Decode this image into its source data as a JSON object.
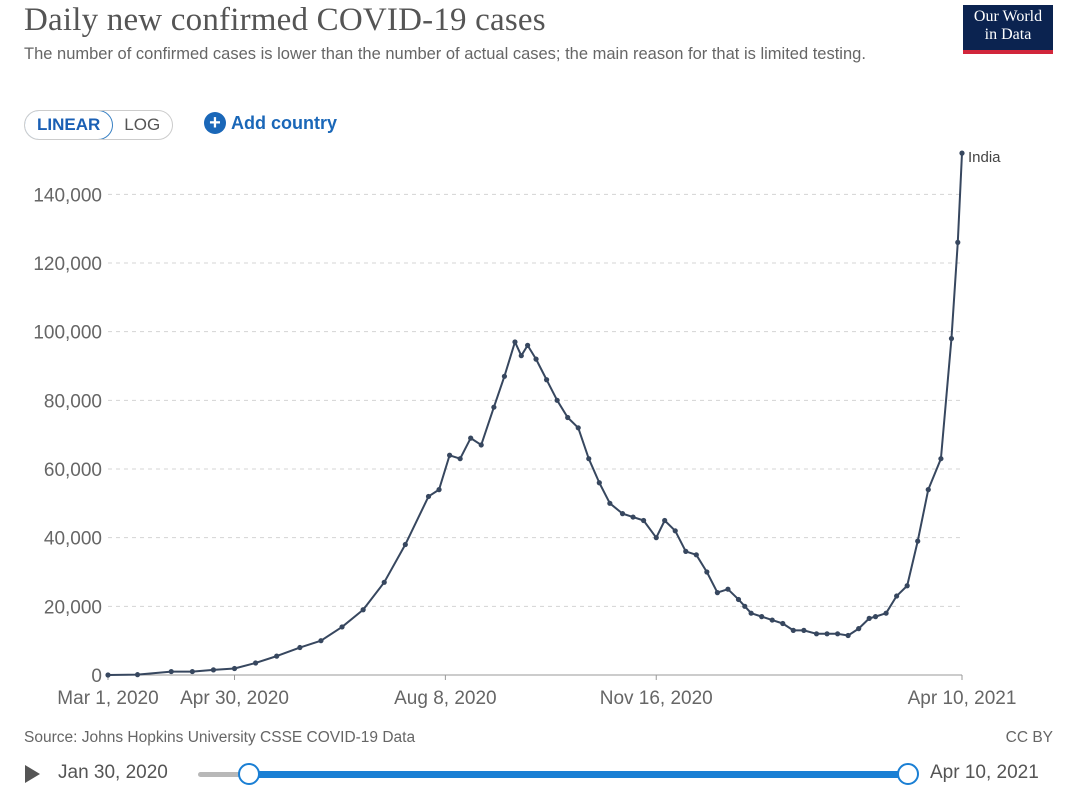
{
  "header": {
    "title": "Daily new confirmed COVID-19 cases",
    "subtitle": "The number of confirmed cases is lower than the number of actual cases; the main reason for that is limited testing.",
    "logo_line1": "Our World",
    "logo_line2": "in Data"
  },
  "controls": {
    "linear_label": "LINEAR",
    "log_label": "LOG",
    "add_country_label": "Add country",
    "selected_scale": "LINEAR"
  },
  "footer": {
    "source": "Source: Johns Hopkins University CSSE COVID-19 Data",
    "license": "CC BY"
  },
  "timeline": {
    "start_date": "Jan 30, 2020",
    "end_date": "Apr 10, 2021"
  },
  "colors": {
    "line": "#37475f",
    "accent": "#1a7fd4",
    "brand": "#0b2350"
  },
  "chart_data": {
    "type": "line",
    "title": "Daily new confirmed COVID-19 cases",
    "xlabel": "",
    "ylabel": "",
    "ylim": [
      0,
      150000
    ],
    "yticks": [
      0,
      20000,
      40000,
      60000,
      80000,
      100000,
      120000,
      140000
    ],
    "ytick_labels": [
      "0",
      "20,000",
      "40,000",
      "60,000",
      "80,000",
      "100,000",
      "120,000",
      "140,000"
    ],
    "xlim": [
      "2020-03-01",
      "2021-04-10"
    ],
    "xticks": [
      "2020-03-01",
      "2020-04-30",
      "2020-08-08",
      "2020-11-16",
      "2021-04-10"
    ],
    "xtick_labels": [
      "Mar 1, 2020",
      "Apr 30, 2020",
      "Aug 8, 2020",
      "Nov 16, 2020",
      "Apr 10, 2021"
    ],
    "grid": "horizontal-dashed",
    "series": [
      {
        "name": "India",
        "x": [
          "2020-03-01",
          "2020-03-15",
          "2020-03-31",
          "2020-04-10",
          "2020-04-20",
          "2020-04-30",
          "2020-05-10",
          "2020-05-20",
          "2020-05-31",
          "2020-06-10",
          "2020-06-20",
          "2020-06-30",
          "2020-07-10",
          "2020-07-20",
          "2020-07-31",
          "2020-08-05",
          "2020-08-10",
          "2020-08-15",
          "2020-08-20",
          "2020-08-25",
          "2020-08-31",
          "2020-09-05",
          "2020-09-10",
          "2020-09-13",
          "2020-09-16",
          "2020-09-20",
          "2020-09-25",
          "2020-09-30",
          "2020-10-05",
          "2020-10-10",
          "2020-10-15",
          "2020-10-20",
          "2020-10-25",
          "2020-10-31",
          "2020-11-05",
          "2020-11-10",
          "2020-11-16",
          "2020-11-20",
          "2020-11-25",
          "2020-11-30",
          "2020-12-05",
          "2020-12-10",
          "2020-12-15",
          "2020-12-20",
          "2020-12-25",
          "2020-12-28",
          "2020-12-31",
          "2021-01-05",
          "2021-01-10",
          "2021-01-15",
          "2021-01-20",
          "2021-01-25",
          "2021-01-31",
          "2021-02-05",
          "2021-02-10",
          "2021-02-15",
          "2021-02-20",
          "2021-02-25",
          "2021-02-28",
          "2021-03-05",
          "2021-03-10",
          "2021-03-15",
          "2021-03-20",
          "2021-03-25",
          "2021-03-31",
          "2021-04-05",
          "2021-04-08",
          "2021-04-10"
        ],
        "y": [
          0,
          100,
          1000,
          1000,
          1500,
          1900,
          3500,
          5500,
          8000,
          10000,
          14000,
          19000,
          27000,
          38000,
          52000,
          54000,
          64000,
          63000,
          69000,
          67000,
          78000,
          87000,
          97000,
          93000,
          96000,
          92000,
          86000,
          80000,
          75000,
          72000,
          63000,
          56000,
          50000,
          47000,
          46000,
          45000,
          40000,
          45000,
          42000,
          36000,
          35000,
          30000,
          24000,
          25000,
          22000,
          20000,
          18000,
          17000,
          16000,
          15000,
          13000,
          13000,
          12000,
          12000,
          12000,
          11500,
          13500,
          16500,
          17000,
          18000,
          23000,
          26000,
          39000,
          54000,
          63000,
          98000,
          126000,
          152000
        ]
      }
    ]
  }
}
